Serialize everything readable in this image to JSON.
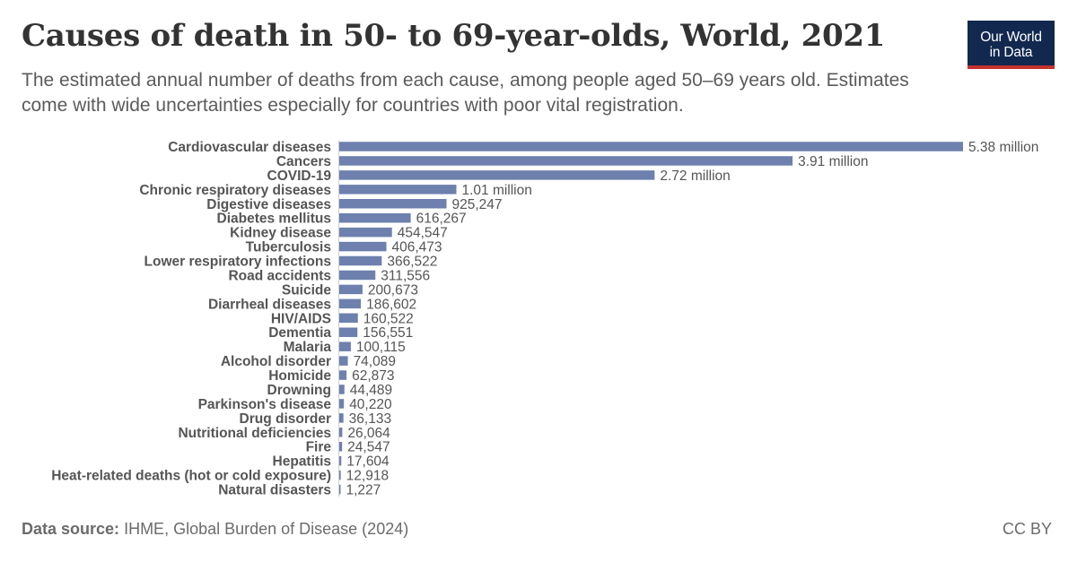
{
  "header": {
    "title": "Causes of death in 50- to 69-year-olds, World, 2021",
    "subtitle": "The estimated annual number of deaths from each cause, among people aged 50–69 years old. Estimates come with wide uncertainties especially for countries with poor vital registration.",
    "logo_line1": "Our World",
    "logo_line2": "in Data"
  },
  "footer": {
    "source_label": "Data source:",
    "source_text": "IHME, Global Burden of Disease (2024)",
    "license": "CC BY"
  },
  "colors": {
    "bar": "#6d80ae",
    "logo_bg": "#12284f",
    "logo_accent": "#c6322e"
  },
  "chart_data": {
    "type": "bar",
    "orientation": "horizontal",
    "title": "Causes of death in 50- to 69-year-olds, World, 2021",
    "categories": [
      "Cardiovascular diseases",
      "Cancers",
      "COVID-19",
      "Chronic respiratory diseases",
      "Digestive diseases",
      "Diabetes mellitus",
      "Kidney disease",
      "Tuberculosis",
      "Lower respiratory infections",
      "Road accidents",
      "Suicide",
      "Diarrheal diseases",
      "HIV/AIDS",
      "Dementia",
      "Malaria",
      "Alcohol disorder",
      "Homicide",
      "Drowning",
      "Parkinson's disease",
      "Drug disorder",
      "Nutritional deficiencies",
      "Fire",
      "Hepatitis",
      "Heat-related deaths (hot or cold exposure)",
      "Natural disasters"
    ],
    "values": [
      5380000,
      3910000,
      2720000,
      1010000,
      925247,
      616267,
      454547,
      406473,
      366522,
      311556,
      200673,
      186602,
      160522,
      156551,
      100115,
      74089,
      62873,
      44489,
      40220,
      36133,
      26064,
      24547,
      17604,
      12918,
      1227
    ],
    "value_labels": [
      "5.38 million",
      "3.91 million",
      "2.72 million",
      "1.01 million",
      "925,247",
      "616,267",
      "454,547",
      "406,473",
      "366,522",
      "311,556",
      "200,673",
      "186,602",
      "160,522",
      "156,551",
      "100,115",
      "74,089",
      "62,873",
      "44,489",
      "40,220",
      "36,133",
      "26,064",
      "24,547",
      "17,604",
      "12,918",
      "1,227"
    ],
    "xlim": [
      0,
      5380000
    ],
    "grid": false,
    "legend": "none"
  }
}
